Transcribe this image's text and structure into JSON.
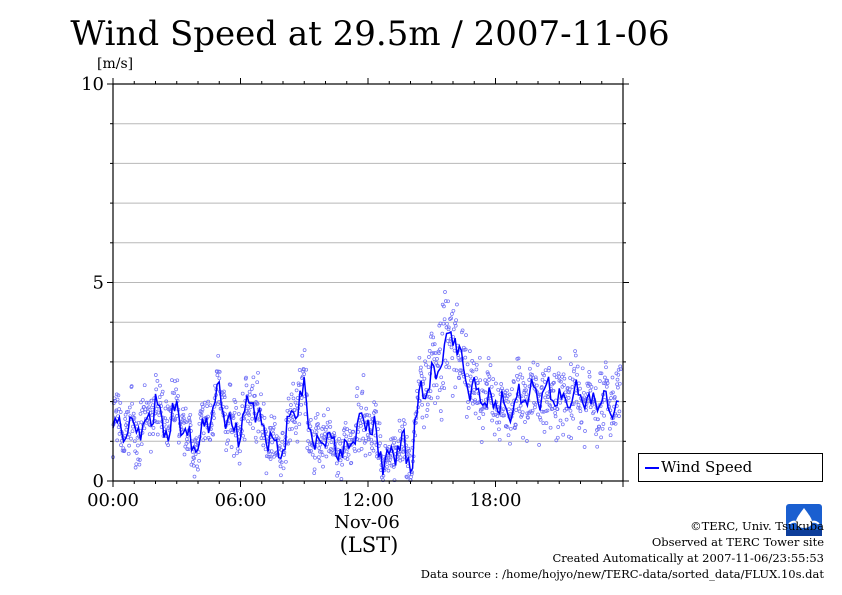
{
  "chart_data": {
    "type": "scatter",
    "title": "Wind Speed at 29.5m / 2007-11-06",
    "ylabel": "[m/s]",
    "xlabel": "(LST)",
    "x_date_label": "Nov-06",
    "ylim": [
      0,
      10
    ],
    "xlim_hours": [
      0,
      23.5
    ],
    "y_ticks": [
      "0",
      "5",
      "10"
    ],
    "x_ticks": [
      "00:00",
      "06:00",
      "12:00",
      "18:00"
    ],
    "grid": true,
    "legend_position": "bottom-right",
    "series": [
      {
        "name": "Wind Speed",
        "color": "#0000ff",
        "x": [
          0,
          0.5,
          1,
          1.5,
          2,
          2.5,
          3,
          3.5,
          4,
          4.5,
          5,
          5.5,
          6,
          6.5,
          7,
          7.5,
          8,
          8.5,
          9,
          9.5,
          10,
          10.5,
          11,
          11.5,
          12,
          12.5,
          13,
          13.5,
          14,
          14.5,
          15,
          15.5,
          16,
          16.5,
          17,
          17.5,
          18,
          18.5,
          19,
          19.5,
          20,
          20.5,
          21,
          21.5,
          22,
          22.5,
          23,
          23.5
        ],
        "y": [
          1.5,
          1.2,
          1.4,
          1.3,
          2.0,
          1.3,
          1.8,
          1.0,
          0.9,
          1.6,
          2.1,
          1.4,
          1.3,
          2.1,
          1.5,
          0.9,
          0.8,
          1.8,
          2.3,
          0.7,
          1.2,
          0.8,
          0.7,
          1.4,
          1.6,
          0.8,
          0.5,
          1.0,
          0.4,
          2.4,
          2.5,
          3.2,
          3.8,
          2.7,
          2.3,
          2.1,
          2.0,
          1.7,
          2.0,
          2.2,
          2.3,
          2.2,
          1.9,
          2.1,
          2.2,
          2.0,
          2.1,
          1.9
        ]
      }
    ]
  },
  "credits": {
    "line1": "©TERC, Univ. Tsukuba",
    "line2": "Observed at TERC Tower site",
    "line3": "Created Automatically at 2007-11-06/23:55:53",
    "line4": "Data source : /home/hojyo/new/TERC-data/sorted_data/FLUX.10s.dat"
  },
  "logo": {
    "label": "TERC",
    "color": "#1a5fd0",
    "icon": "terc-logo-icon"
  }
}
